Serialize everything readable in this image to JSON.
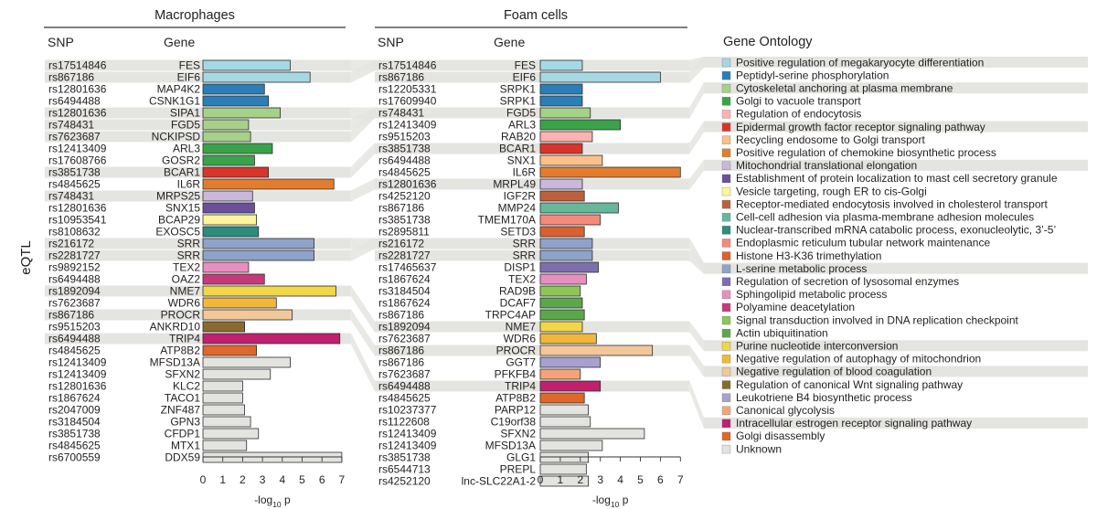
{
  "y_axis_label": "eQTL",
  "ontology_title": "Gene Ontology",
  "ontology": [
    {
      "term": "Positive regulation of megakaryocyte differentiation",
      "color": "#a6d8e3",
      "shaded": true
    },
    {
      "term": "Peptidyl-serine phosphorylation",
      "color": "#2a7fb8",
      "shaded": false
    },
    {
      "term": "Cytoskeletal anchoring at plasma membrane",
      "color": "#a6d189",
      "shaded": true
    },
    {
      "term": "Golgi to vacuole transport",
      "color": "#3aa34a",
      "shaded": false
    },
    {
      "term": "Regulation of endocytosis",
      "color": "#fbb4b0",
      "shaded": false
    },
    {
      "term": "Epidermal growth factor receptor signaling pathway",
      "color": "#d7352c",
      "shaded": true
    },
    {
      "term": "Recycling endosome to Golgi transport",
      "color": "#f9c08a",
      "shaded": false
    },
    {
      "term": "Positive regulation of chemokine biosynthetic process",
      "color": "#e37d2d",
      "shaded": false
    },
    {
      "term": "Mitochondrial translational elongation",
      "color": "#c9b8da",
      "shaded": true
    },
    {
      "term": "Establishment of protein localization to mast cell secretory granule",
      "color": "#6b4f9b",
      "shaded": false
    },
    {
      "term": "Vesicle targeting, rough ER to cis-Golgi",
      "color": "#fbf59b",
      "shaded": false
    },
    {
      "term": "Receptor-mediated endocytosis involved in cholesterol transport",
      "color": "#c0603a",
      "shaded": false
    },
    {
      "term": "Cell-cell adhesion via plasma-membrane adhesion molecules",
      "color": "#67b89b",
      "shaded": false
    },
    {
      "term": "Nuclear-transcribed mRNA catabolic process, exonucleolytic, 3’-5’",
      "color": "#2c8c7d",
      "shaded": false
    },
    {
      "term": "Endoplasmic reticulum tubular network maintenance",
      "color": "#f48b7a",
      "shaded": false
    },
    {
      "term": "Histone H3-K36 trimethylation",
      "color": "#d9612e",
      "shaded": false
    },
    {
      "term": "L-serine metabolic process",
      "color": "#8ea3c9",
      "shaded": true
    },
    {
      "term": "Regulation of secretion of lysosomal enzymes",
      "color": "#7d6fae",
      "shaded": false
    },
    {
      "term": "Sphingolipid metabolic process",
      "color": "#e98fc0",
      "shaded": false
    },
    {
      "term": "Polyamine deacetylation",
      "color": "#c63a7c",
      "shaded": false
    },
    {
      "term": "Signal transduction involved in DNA replication checkpoint",
      "color": "#8cc657",
      "shaded": false
    },
    {
      "term": "Actin ubiquitination",
      "color": "#5aa84a",
      "shaded": false
    },
    {
      "term": "Purine nucleotide interconversion",
      "color": "#f2d64a",
      "shaded": true
    },
    {
      "term": "Negative regulation of autophagy of mitochondrion",
      "color": "#f0b73a",
      "shaded": false
    },
    {
      "term": "Negative regulation of blood coagulation",
      "color": "#f2c89a",
      "shaded": true
    },
    {
      "term": "Regulation of canonical Wnt signaling pathway",
      "color": "#8a6a2e",
      "shaded": false
    },
    {
      "term": "Leukotriene B4 biosynthetic process",
      "color": "#a7a1cf",
      "shaded": false
    },
    {
      "term": "Canonical glycolysis",
      "color": "#f5a37a",
      "shaded": false
    },
    {
      "term": "Intracellular estrogen receptor signaling pathway",
      "color": "#c0206e",
      "shaded": true
    },
    {
      "term": "Golgi disassembly",
      "color": "#e0672a",
      "shaded": false
    },
    {
      "term": "Unknown",
      "color": "#e3e3df",
      "shaded": false
    }
  ],
  "chart_data": [
    {
      "type": "bar",
      "orientation": "horizontal",
      "title": "Macrophages",
      "snp_header": "SNP",
      "gene_header": "Gene",
      "xlabel": "-log10 p",
      "xlabel_main": "-log",
      "xlabel_sub": "10",
      "xlabel_tail": " p",
      "xlim": [
        0,
        7
      ],
      "xticks": [
        "0",
        "1",
        "2",
        "3",
        "4",
        "5",
        "6",
        "7"
      ],
      "rows": [
        {
          "snp": "rs17514846",
          "gene": "FES",
          "value": 4.4,
          "ontology": 0,
          "shaded": true
        },
        {
          "snp": "rs867186",
          "gene": "EIF6",
          "value": 5.4,
          "ontology": 0,
          "shaded": true
        },
        {
          "snp": "rs12801636",
          "gene": "MAP4K2",
          "value": 3.1,
          "ontology": 1,
          "shaded": false
        },
        {
          "snp": "rs6494488",
          "gene": "CSNK1G1",
          "value": 3.3,
          "ontology": 1,
          "shaded": false
        },
        {
          "snp": "rs12801636",
          "gene": "SIPA1",
          "value": 3.9,
          "ontology": 2,
          "shaded": true
        },
        {
          "snp": "rs748431",
          "gene": "FGD5",
          "value": 2.3,
          "ontology": 2,
          "shaded": true
        },
        {
          "snp": "rs7623687",
          "gene": "NCKIPSD",
          "value": 2.4,
          "ontology": 2,
          "shaded": true
        },
        {
          "snp": "rs12413409",
          "gene": "ARL3",
          "value": 3.5,
          "ontology": 3,
          "shaded": false
        },
        {
          "snp": "rs17608766",
          "gene": "GOSR2",
          "value": 2.6,
          "ontology": 3,
          "shaded": false
        },
        {
          "snp": "rs3851738",
          "gene": "BCAR1",
          "value": 3.3,
          "ontology": 5,
          "shaded": true
        },
        {
          "snp": "rs4845625",
          "gene": "IL6R",
          "value": 6.6,
          "ontology": 7,
          "shaded": false
        },
        {
          "snp": "rs748431",
          "gene": "MRPS25",
          "value": 2.5,
          "ontology": 8,
          "shaded": true
        },
        {
          "snp": "rs12801636",
          "gene": "SNX15",
          "value": 2.6,
          "ontology": 9,
          "shaded": false
        },
        {
          "snp": "rs10953541",
          "gene": "BCAP29",
          "value": 2.7,
          "ontology": 10,
          "shaded": false
        },
        {
          "snp": "rs8108632",
          "gene": "EXOSC5",
          "value": 2.8,
          "ontology": 13,
          "shaded": false
        },
        {
          "snp": "rs216172",
          "gene": "SRR",
          "value": 5.6,
          "ontology": 16,
          "shaded": true
        },
        {
          "snp": "rs2281727",
          "gene": "SRR",
          "value": 5.6,
          "ontology": 16,
          "shaded": true
        },
        {
          "snp": "rs9892152",
          "gene": "TEX2",
          "value": 2.3,
          "ontology": 18,
          "shaded": false
        },
        {
          "snp": "rs6494488",
          "gene": "OAZ2",
          "value": 3.1,
          "ontology": 19,
          "shaded": false
        },
        {
          "snp": "rs1892094",
          "gene": "NME7",
          "value": 6.7,
          "ontology": 22,
          "shaded": true
        },
        {
          "snp": "rs7623687",
          "gene": "WDR6",
          "value": 3.7,
          "ontology": 23,
          "shaded": false
        },
        {
          "snp": "rs867186",
          "gene": "PROCR",
          "value": 4.5,
          "ontology": 24,
          "shaded": true
        },
        {
          "snp": "rs9515203",
          "gene": "ANKRD10",
          "value": 2.1,
          "ontology": 25,
          "shaded": false
        },
        {
          "snp": "rs6494488",
          "gene": "TRIP4",
          "value": 6.9,
          "ontology": 28,
          "shaded": true
        },
        {
          "snp": "rs4845625",
          "gene": "ATP8B2",
          "value": 2.7,
          "ontology": 29,
          "shaded": false
        },
        {
          "snp": "rs12413409",
          "gene": "MFSD13A",
          "value": 4.4,
          "ontology": 30,
          "shaded": false
        },
        {
          "snp": "rs12413409",
          "gene": "SFXN2",
          "value": 3.4,
          "ontology": 30,
          "shaded": false
        },
        {
          "snp": "rs12801636",
          "gene": "KLC2",
          "value": 2.0,
          "ontology": 30,
          "shaded": false
        },
        {
          "snp": "rs1867624",
          "gene": "TACO1",
          "value": 2.0,
          "ontology": 30,
          "shaded": false
        },
        {
          "snp": "rs2047009",
          "gene": "ZNF487",
          "value": 2.1,
          "ontology": 30,
          "shaded": false
        },
        {
          "snp": "rs3184504",
          "gene": "GPN3",
          "value": 2.4,
          "ontology": 30,
          "shaded": false
        },
        {
          "snp": "rs3851738",
          "gene": "CFDP1",
          "value": 2.8,
          "ontology": 30,
          "shaded": false
        },
        {
          "snp": "rs4845625",
          "gene": "MTX1",
          "value": 2.2,
          "ontology": 30,
          "shaded": false
        },
        {
          "snp": "rs6700559",
          "gene": "DDX59",
          "value": 7.0,
          "ontology": 30,
          "shaded": false
        }
      ]
    },
    {
      "type": "bar",
      "orientation": "horizontal",
      "title": "Foam cells",
      "snp_header": "SNP",
      "gene_header": "Gene",
      "xlabel": "-log10 p",
      "xlabel_main": "-log",
      "xlabel_sub": "10",
      "xlabel_tail": " p",
      "xlim": [
        0,
        7
      ],
      "xticks": [
        "0",
        "1",
        "2",
        "3",
        "4",
        "5",
        "6",
        "7"
      ],
      "rows": [
        {
          "snp": "rs17514846",
          "gene": "FES",
          "value": 2.1,
          "ontology": 0,
          "shaded": true
        },
        {
          "snp": "rs867186",
          "gene": "EIF6",
          "value": 6.0,
          "ontology": 0,
          "shaded": true
        },
        {
          "snp": "rs12205331",
          "gene": "SRPK1",
          "value": 2.1,
          "ontology": 1,
          "shaded": false
        },
        {
          "snp": "rs17609940",
          "gene": "SRPK1",
          "value": 2.1,
          "ontology": 1,
          "shaded": false
        },
        {
          "snp": "rs748431",
          "gene": "FGD5",
          "value": 2.5,
          "ontology": 2,
          "shaded": true
        },
        {
          "snp": "rs12413409",
          "gene": "ARL3",
          "value": 4.0,
          "ontology": 3,
          "shaded": false
        },
        {
          "snp": "rs9515203",
          "gene": "RAB20",
          "value": 2.6,
          "ontology": 4,
          "shaded": false
        },
        {
          "snp": "rs3851738",
          "gene": "BCAR1",
          "value": 2.1,
          "ontology": 5,
          "shaded": true
        },
        {
          "snp": "rs6494488",
          "gene": "SNX1",
          "value": 3.1,
          "ontology": 6,
          "shaded": false
        },
        {
          "snp": "rs4845625",
          "gene": "IL6R",
          "value": 7.0,
          "ontology": 7,
          "shaded": false
        },
        {
          "snp": "rs12801636",
          "gene": "MRPL49",
          "value": 2.1,
          "ontology": 8,
          "shaded": true
        },
        {
          "snp": "rs4252120",
          "gene": "IGF2R",
          "value": 2.2,
          "ontology": 11,
          "shaded": false
        },
        {
          "snp": "rs867186",
          "gene": "MMP24",
          "value": 3.9,
          "ontology": 12,
          "shaded": false
        },
        {
          "snp": "rs3851738",
          "gene": "TMEM170A",
          "value": 3.0,
          "ontology": 14,
          "shaded": false
        },
        {
          "snp": "rs2895811",
          "gene": "SETD3",
          "value": 2.2,
          "ontology": 15,
          "shaded": false
        },
        {
          "snp": "rs216172",
          "gene": "SRR",
          "value": 2.6,
          "ontology": 16,
          "shaded": true
        },
        {
          "snp": "rs2281727",
          "gene": "SRR",
          "value": 2.6,
          "ontology": 16,
          "shaded": true
        },
        {
          "snp": "rs17465637",
          "gene": "DISP1",
          "value": 2.9,
          "ontology": 17,
          "shaded": false
        },
        {
          "snp": "rs1867624",
          "gene": "TEX2",
          "value": 2.3,
          "ontology": 18,
          "shaded": false
        },
        {
          "snp": "rs3184504",
          "gene": "RAD9B",
          "value": 2.0,
          "ontology": 20,
          "shaded": false
        },
        {
          "snp": "rs1867624",
          "gene": "DCAF7",
          "value": 2.1,
          "ontology": 21,
          "shaded": false
        },
        {
          "snp": "rs867186",
          "gene": "TRPC4AP",
          "value": 2.2,
          "ontology": 21,
          "shaded": false
        },
        {
          "snp": "rs1892094",
          "gene": "NME7",
          "value": 2.1,
          "ontology": 22,
          "shaded": true
        },
        {
          "snp": "rs7623687",
          "gene": "WDR6",
          "value": 2.8,
          "ontology": 23,
          "shaded": false
        },
        {
          "snp": "rs867186",
          "gene": "PROCR",
          "value": 5.6,
          "ontology": 24,
          "shaded": true
        },
        {
          "snp": "rs867186",
          "gene": "GGT7",
          "value": 3.0,
          "ontology": 26,
          "shaded": false
        },
        {
          "snp": "rs7623687",
          "gene": "PFKFB4",
          "value": 2.0,
          "ontology": 27,
          "shaded": false
        },
        {
          "snp": "rs6494488",
          "gene": "TRIP4",
          "value": 3.0,
          "ontology": 28,
          "shaded": true
        },
        {
          "snp": "rs4845625",
          "gene": "ATP8B2",
          "value": 2.2,
          "ontology": 29,
          "shaded": false
        },
        {
          "snp": "rs10237377",
          "gene": "PARP12",
          "value": 2.4,
          "ontology": 30,
          "shaded": false
        },
        {
          "snp": "rs1122608",
          "gene": "C19orf38",
          "value": 2.5,
          "ontology": 30,
          "shaded": false
        },
        {
          "snp": "rs12413409",
          "gene": "SFXN2",
          "value": 5.2,
          "ontology": 30,
          "shaded": false
        },
        {
          "snp": "rs12413409",
          "gene": "MFSD13A",
          "value": 3.1,
          "ontology": 30,
          "shaded": false
        },
        {
          "snp": "rs3851738",
          "gene": "GLG1",
          "value": 2.4,
          "ontology": 30,
          "shaded": false
        },
        {
          "snp": "rs6544713",
          "gene": "PREPL",
          "value": 2.3,
          "ontology": 30,
          "shaded": false
        },
        {
          "snp": "rs4252120",
          "gene": "lnc-SLC22A1-2",
          "value": 2.4,
          "ontology": 30,
          "shaded": false
        }
      ]
    }
  ]
}
